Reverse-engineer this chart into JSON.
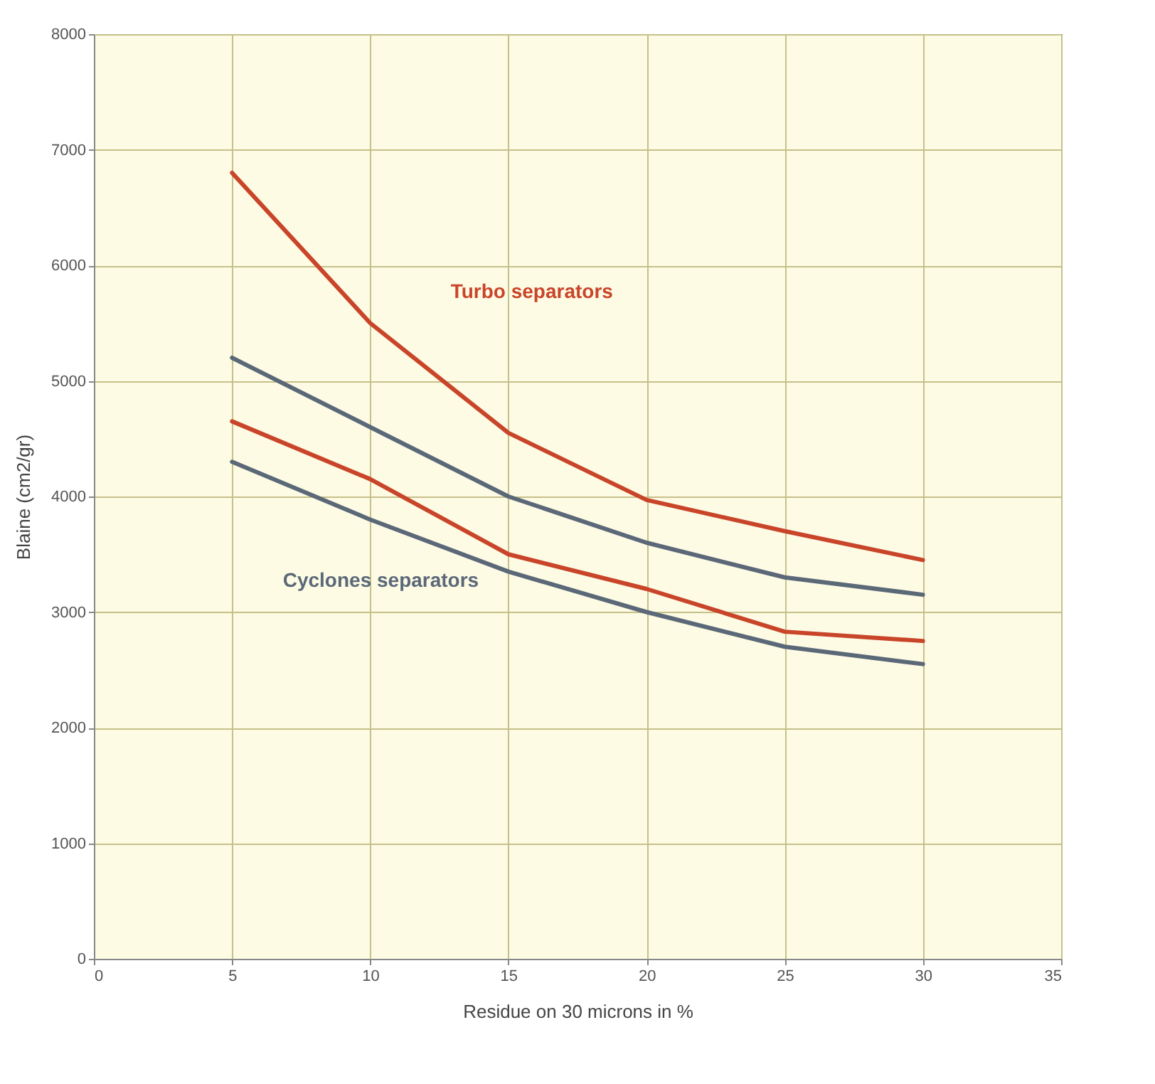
{
  "chart_data": {
    "type": "line",
    "xlabel": "Residue on 30 microns in %",
    "ylabel": "Blaine (cm2/gr)",
    "x": [
      5,
      10,
      15,
      20,
      25,
      30
    ],
    "series": [
      {
        "name": "Turbo separators",
        "color": "#c9452a",
        "values": [
          6800,
          5500,
          4550,
          3970,
          3700,
          3450
        ]
      },
      {
        "color": "#c9452a",
        "values": [
          4650,
          4150,
          3500,
          3200,
          2830,
          2750
        ]
      },
      {
        "color": "#5b6878",
        "values": [
          5200,
          4600,
          4000,
          3600,
          3300,
          3150
        ]
      },
      {
        "name": "Cyclones separators",
        "color": "#5b6878",
        "values": [
          4300,
          3800,
          3350,
          3000,
          2700,
          2550
        ]
      }
    ],
    "xlim": [
      0,
      35
    ],
    "xticks": [
      0,
      5,
      10,
      15,
      20,
      25,
      30,
      35
    ],
    "ylim": [
      0,
      8000
    ],
    "yticks": [
      0,
      1000,
      2000,
      3000,
      4000,
      5000,
      6000,
      7000,
      8000
    ],
    "grid": true,
    "legend": false,
    "marker": "none",
    "line_style": "solid"
  }
}
